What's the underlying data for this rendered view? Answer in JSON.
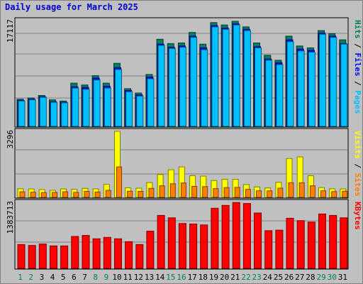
{
  "chart_data": {
    "type": "bar",
    "title": "Daily usage for March 2025",
    "categories": [
      "1",
      "2",
      "3",
      "4",
      "5",
      "6",
      "7",
      "8",
      "9",
      "10",
      "11",
      "12",
      "13",
      "14",
      "15",
      "16",
      "17",
      "18",
      "19",
      "20",
      "21",
      "22",
      "23",
      "24",
      "25",
      "26",
      "27",
      "28",
      "29",
      "30",
      "31"
    ],
    "weekend_days": [
      "1",
      "2",
      "8",
      "9",
      "15",
      "16",
      "22",
      "23",
      "29",
      "30"
    ],
    "colors": {
      "hits": "#00805c",
      "files": "#0000ff",
      "pages": "#00c0ff",
      "visits": "#ffff00",
      "sites": "#ff8000",
      "kbytes": "#ff0000",
      "weekday_label": "#000000",
      "weekend_label": "#00805c",
      "title": "#0000cc"
    },
    "panels": [
      {
        "id": "hits-files-pages",
        "scale_max_label": "17117",
        "ylim": [
          0,
          17117
        ],
        "legend": [
          {
            "name": "Pages",
            "color": "#00c0ff"
          },
          {
            "name": "Files",
            "color": "#0000ff"
          },
          {
            "name": "Hits",
            "color": "#00805c"
          }
        ],
        "series": [
          {
            "name": "Hits",
            "values": [
              4400,
              4600,
              5000,
              4300,
              4100,
              7000,
              6700,
              8200,
              7000,
              10200,
              6100,
              5400,
              8400,
              14100,
              13400,
              13500,
              15200,
              13300,
              16800,
              16400,
              17000,
              16100,
              13500,
              11500,
              10700,
              14600,
              13000,
              12700,
              15500,
              15000,
              14000
            ]
          },
          {
            "name": "Files",
            "values": [
              4200,
              4400,
              4800,
              4000,
              3900,
              6400,
              6300,
              7800,
              6500,
              9500,
              5800,
              5100,
              8000,
              13300,
              12800,
              13000,
              14600,
              12700,
              16300,
              15900,
              16600,
              15700,
              12900,
              10900,
              10300,
              14000,
              12500,
              12300,
              15100,
              14600,
              13400
            ]
          },
          {
            "name": "Pages",
            "values": [
              4100,
              4300,
              4700,
              3900,
              3800,
              6200,
              6000,
              7500,
              6200,
              9200,
              5600,
              4900,
              7700,
              13100,
              12600,
              12800,
              14400,
              12400,
              16100,
              15700,
              16400,
              15500,
              12700,
              10700,
              10000,
              13700,
              12200,
              12000,
              14900,
              14400,
              13300
            ]
          }
        ]
      },
      {
        "id": "visits-sites",
        "scale_max_label": "3296",
        "ylim": [
          0,
          3296
        ],
        "legend": [
          {
            "name": "Sites",
            "color": "#ff8000"
          },
          {
            "name": "Visits",
            "color": "#ffff00"
          }
        ],
        "series": [
          {
            "name": "Visits",
            "values": [
              430,
              420,
              390,
              350,
              420,
              400,
              450,
              420,
              650,
              3296,
              480,
              460,
              740,
              1140,
              1380,
              1520,
              1080,
              1060,
              840,
              900,
              900,
              640,
              520,
              470,
              750,
              1940,
              2020,
              1080,
              490,
              430,
              420
            ]
          },
          {
            "name": "Sites",
            "values": [
              280,
              260,
              240,
              250,
              280,
              250,
              300,
              270,
              350,
              1520,
              310,
              300,
              450,
              580,
              680,
              720,
              550,
              540,
              440,
              490,
              500,
              400,
              330,
              330,
              460,
              730,
              730,
              580,
              330,
              290,
              310
            ]
          }
        ]
      },
      {
        "id": "kbytes",
        "scale_max_label": "1383713",
        "ylim": [
          0,
          1383713
        ],
        "legend": [
          {
            "name": "KBytes",
            "color": "#ff0000"
          }
        ],
        "series": [
          {
            "name": "KBytes",
            "values": [
              500000,
              480000,
              510000,
              470000,
              470000,
              670000,
              690000,
              620000,
              650000,
              620000,
              560000,
              500000,
              780000,
              1110000,
              1060000,
              940000,
              930000,
              910000,
              1260000,
              1320000,
              1380000,
              1360000,
              1160000,
              790000,
              800000,
              1050000,
              1000000,
              970000,
              1140000,
              1110000,
              1060000
            ]
          }
        ]
      }
    ]
  }
}
